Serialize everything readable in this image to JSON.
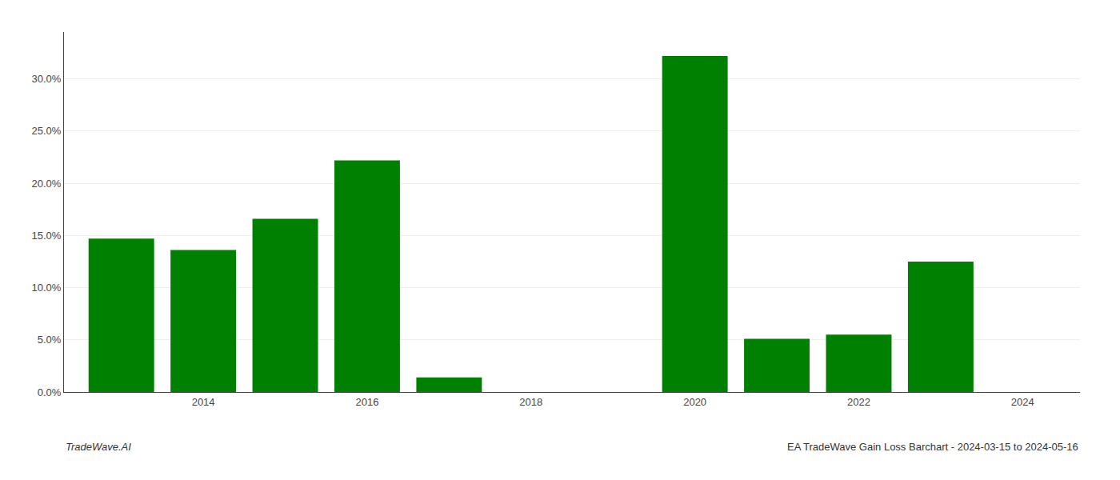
{
  "chart_data": {
    "type": "bar",
    "x": [
      2013,
      2014,
      2015,
      2016,
      2017,
      2020,
      2021,
      2022,
      2023
    ],
    "values": [
      0.147,
      0.136,
      0.166,
      0.222,
      0.014,
      0.322,
      0.051,
      0.055,
      0.125
    ],
    "color": "#008000",
    "xlim": [
      2012.3,
      2024.7
    ],
    "xticks": [
      2014,
      2016,
      2018,
      2020,
      2022,
      2024
    ],
    "ylim": [
      0.0,
      0.345
    ],
    "yticks": [
      {
        "value": 0.0,
        "label": "0.0%"
      },
      {
        "value": 0.05,
        "label": "5.0%"
      },
      {
        "value": 0.1,
        "label": "10.0%"
      },
      {
        "value": 0.15,
        "label": "15.0%"
      },
      {
        "value": 0.2,
        "label": "20.0%"
      },
      {
        "value": 0.25,
        "label": "25.0%"
      },
      {
        "value": 0.3,
        "label": "30.0%"
      }
    ],
    "grid": true,
    "annotations": [
      "TradeWave.AI",
      "EA TradeWave Gain Loss Barchart - 2024-03-15 to 2024-05-16"
    ]
  }
}
